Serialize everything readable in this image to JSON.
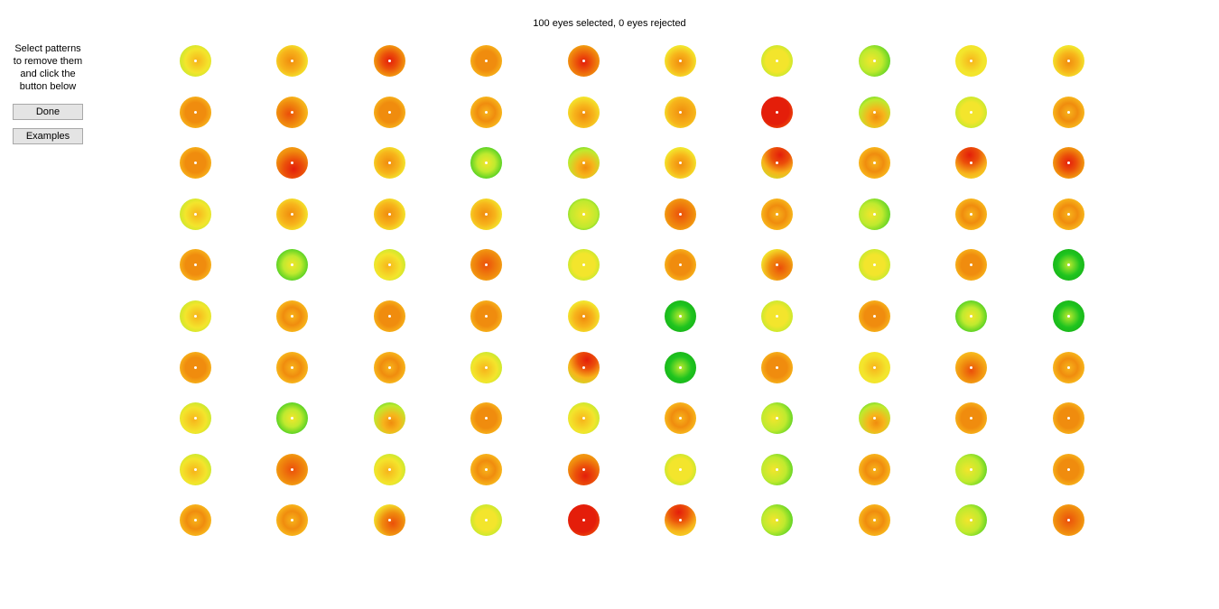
{
  "status": {
    "text": "100 eyes selected, 0 eyes rejected"
  },
  "sidebar": {
    "instructions": [
      "Select patterns",
      "to remove them",
      "and click the",
      "button below"
    ],
    "done_label": "Done",
    "examples_label": "Examples"
  },
  "palette": {
    "red": "#e41e0a",
    "redorange": "#eb4f0a",
    "orange": "#f08c0e",
    "amber": "#f7b41b",
    "yellow": "#f3e52c",
    "lime": "#bfea2e",
    "green": "#1fc41f"
  },
  "eyes": {
    "rows": 10,
    "cols": 10,
    "patterns": [
      [
        "lime-center",
        "amber-lime",
        "red-center",
        "orange",
        "redorange-center",
        "lime-orange",
        "yellow-lime",
        "green-yellow",
        "yellow",
        "lime-orange"
      ],
      [
        "orange",
        "redorange-lime",
        "orange",
        "amber",
        "yellow-orange",
        "orange-yellow",
        "red",
        "green-orange",
        "lime-yellow",
        "amber"
      ],
      [
        "orange",
        "red-lower",
        "amber-lime",
        "green-lime",
        "green-orange",
        "lime-orange",
        "redorange-top",
        "amber",
        "red-top",
        "red-center"
      ],
      [
        "lime-center",
        "amber-lime",
        "amber-lime",
        "amber-lime",
        "lime",
        "redorange",
        "amber",
        "green-yellow",
        "amber",
        "amber"
      ],
      [
        "orange",
        "green-lime",
        "lime-amber",
        "redorange",
        "yellow-lime",
        "orange",
        "orange-green",
        "lime-yellow",
        "orange",
        "green-dark"
      ],
      [
        "lime-center",
        "amber",
        "orange",
        "orange",
        "lime-orange",
        "green-dark",
        "lime-yellow",
        "orange",
        "green-lime",
        "green-dark"
      ],
      [
        "orange",
        "amber",
        "amber",
        "lime-amber",
        "redorange-top",
        "green-dark",
        "orange",
        "yellow",
        "amber-red",
        "amber"
      ],
      [
        "lime-amber",
        "green-lime",
        "green-orange",
        "orange",
        "lime-amber",
        "amber",
        "lime-green",
        "green-orange",
        "orange",
        "orange"
      ],
      [
        "lime-amber",
        "redorange",
        "lime-amber",
        "amber",
        "red-lower",
        "yellow-lime",
        "lime-green",
        "amber",
        "lime-green",
        "orange"
      ],
      [
        "amber",
        "amber",
        "orange-green",
        "lime-yellow",
        "red",
        "red-top",
        "green-yellow",
        "amber",
        "lime-green",
        "redorange"
      ]
    ]
  }
}
